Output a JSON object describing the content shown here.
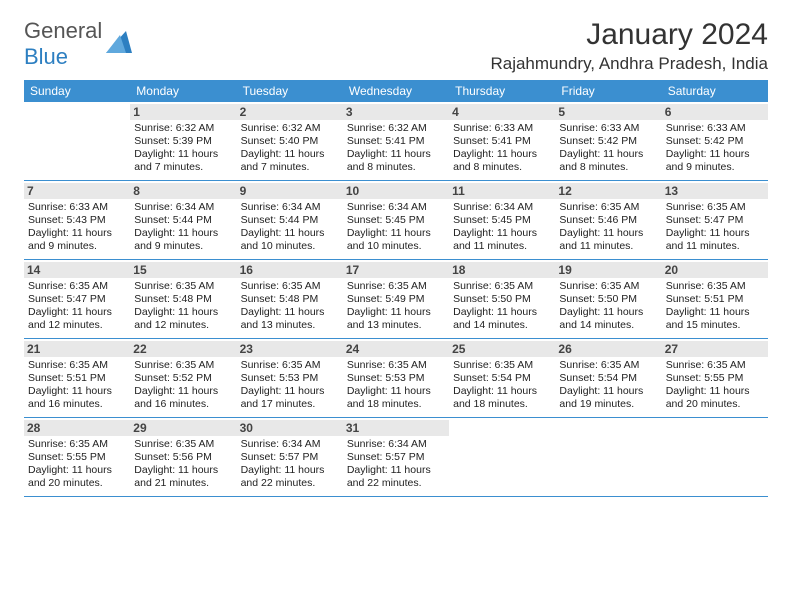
{
  "logo": {
    "text1": "General",
    "text2": "Blue"
  },
  "title": "January 2024",
  "location": "Rajahmundry, Andhra Pradesh, India",
  "dayHeaders": [
    "Sunday",
    "Monday",
    "Tuesday",
    "Wednesday",
    "Thursday",
    "Friday",
    "Saturday"
  ],
  "colors": {
    "headerBg": "#3b8fd0",
    "headerText": "#ffffff",
    "numBg": "#e8e8e8",
    "weekBorder": "#3b8fd0",
    "logoBlue": "#2d7fc1"
  },
  "weeks": [
    [
      {
        "empty": true
      },
      {
        "num": "1",
        "sunrise": "Sunrise: 6:32 AM",
        "sunset": "Sunset: 5:39 PM",
        "daylight": "Daylight: 11 hours and 7 minutes."
      },
      {
        "num": "2",
        "sunrise": "Sunrise: 6:32 AM",
        "sunset": "Sunset: 5:40 PM",
        "daylight": "Daylight: 11 hours and 7 minutes."
      },
      {
        "num": "3",
        "sunrise": "Sunrise: 6:32 AM",
        "sunset": "Sunset: 5:41 PM",
        "daylight": "Daylight: 11 hours and 8 minutes."
      },
      {
        "num": "4",
        "sunrise": "Sunrise: 6:33 AM",
        "sunset": "Sunset: 5:41 PM",
        "daylight": "Daylight: 11 hours and 8 minutes."
      },
      {
        "num": "5",
        "sunrise": "Sunrise: 6:33 AM",
        "sunset": "Sunset: 5:42 PM",
        "daylight": "Daylight: 11 hours and 8 minutes."
      },
      {
        "num": "6",
        "sunrise": "Sunrise: 6:33 AM",
        "sunset": "Sunset: 5:42 PM",
        "daylight": "Daylight: 11 hours and 9 minutes."
      }
    ],
    [
      {
        "num": "7",
        "sunrise": "Sunrise: 6:33 AM",
        "sunset": "Sunset: 5:43 PM",
        "daylight": "Daylight: 11 hours and 9 minutes."
      },
      {
        "num": "8",
        "sunrise": "Sunrise: 6:34 AM",
        "sunset": "Sunset: 5:44 PM",
        "daylight": "Daylight: 11 hours and 9 minutes."
      },
      {
        "num": "9",
        "sunrise": "Sunrise: 6:34 AM",
        "sunset": "Sunset: 5:44 PM",
        "daylight": "Daylight: 11 hours and 10 minutes."
      },
      {
        "num": "10",
        "sunrise": "Sunrise: 6:34 AM",
        "sunset": "Sunset: 5:45 PM",
        "daylight": "Daylight: 11 hours and 10 minutes."
      },
      {
        "num": "11",
        "sunrise": "Sunrise: 6:34 AM",
        "sunset": "Sunset: 5:45 PM",
        "daylight": "Daylight: 11 hours and 11 minutes."
      },
      {
        "num": "12",
        "sunrise": "Sunrise: 6:35 AM",
        "sunset": "Sunset: 5:46 PM",
        "daylight": "Daylight: 11 hours and 11 minutes."
      },
      {
        "num": "13",
        "sunrise": "Sunrise: 6:35 AM",
        "sunset": "Sunset: 5:47 PM",
        "daylight": "Daylight: 11 hours and 11 minutes."
      }
    ],
    [
      {
        "num": "14",
        "sunrise": "Sunrise: 6:35 AM",
        "sunset": "Sunset: 5:47 PM",
        "daylight": "Daylight: 11 hours and 12 minutes."
      },
      {
        "num": "15",
        "sunrise": "Sunrise: 6:35 AM",
        "sunset": "Sunset: 5:48 PM",
        "daylight": "Daylight: 11 hours and 12 minutes."
      },
      {
        "num": "16",
        "sunrise": "Sunrise: 6:35 AM",
        "sunset": "Sunset: 5:48 PM",
        "daylight": "Daylight: 11 hours and 13 minutes."
      },
      {
        "num": "17",
        "sunrise": "Sunrise: 6:35 AM",
        "sunset": "Sunset: 5:49 PM",
        "daylight": "Daylight: 11 hours and 13 minutes."
      },
      {
        "num": "18",
        "sunrise": "Sunrise: 6:35 AM",
        "sunset": "Sunset: 5:50 PM",
        "daylight": "Daylight: 11 hours and 14 minutes."
      },
      {
        "num": "19",
        "sunrise": "Sunrise: 6:35 AM",
        "sunset": "Sunset: 5:50 PM",
        "daylight": "Daylight: 11 hours and 14 minutes."
      },
      {
        "num": "20",
        "sunrise": "Sunrise: 6:35 AM",
        "sunset": "Sunset: 5:51 PM",
        "daylight": "Daylight: 11 hours and 15 minutes."
      }
    ],
    [
      {
        "num": "21",
        "sunrise": "Sunrise: 6:35 AM",
        "sunset": "Sunset: 5:51 PM",
        "daylight": "Daylight: 11 hours and 16 minutes."
      },
      {
        "num": "22",
        "sunrise": "Sunrise: 6:35 AM",
        "sunset": "Sunset: 5:52 PM",
        "daylight": "Daylight: 11 hours and 16 minutes."
      },
      {
        "num": "23",
        "sunrise": "Sunrise: 6:35 AM",
        "sunset": "Sunset: 5:53 PM",
        "daylight": "Daylight: 11 hours and 17 minutes."
      },
      {
        "num": "24",
        "sunrise": "Sunrise: 6:35 AM",
        "sunset": "Sunset: 5:53 PM",
        "daylight": "Daylight: 11 hours and 18 minutes."
      },
      {
        "num": "25",
        "sunrise": "Sunrise: 6:35 AM",
        "sunset": "Sunset: 5:54 PM",
        "daylight": "Daylight: 11 hours and 18 minutes."
      },
      {
        "num": "26",
        "sunrise": "Sunrise: 6:35 AM",
        "sunset": "Sunset: 5:54 PM",
        "daylight": "Daylight: 11 hours and 19 minutes."
      },
      {
        "num": "27",
        "sunrise": "Sunrise: 6:35 AM",
        "sunset": "Sunset: 5:55 PM",
        "daylight": "Daylight: 11 hours and 20 minutes."
      }
    ],
    [
      {
        "num": "28",
        "sunrise": "Sunrise: 6:35 AM",
        "sunset": "Sunset: 5:55 PM",
        "daylight": "Daylight: 11 hours and 20 minutes."
      },
      {
        "num": "29",
        "sunrise": "Sunrise: 6:35 AM",
        "sunset": "Sunset: 5:56 PM",
        "daylight": "Daylight: 11 hours and 21 minutes."
      },
      {
        "num": "30",
        "sunrise": "Sunrise: 6:34 AM",
        "sunset": "Sunset: 5:57 PM",
        "daylight": "Daylight: 11 hours and 22 minutes."
      },
      {
        "num": "31",
        "sunrise": "Sunrise: 6:34 AM",
        "sunset": "Sunset: 5:57 PM",
        "daylight": "Daylight: 11 hours and 22 minutes."
      },
      {
        "empty": true
      },
      {
        "empty": true
      },
      {
        "empty": true
      }
    ]
  ]
}
